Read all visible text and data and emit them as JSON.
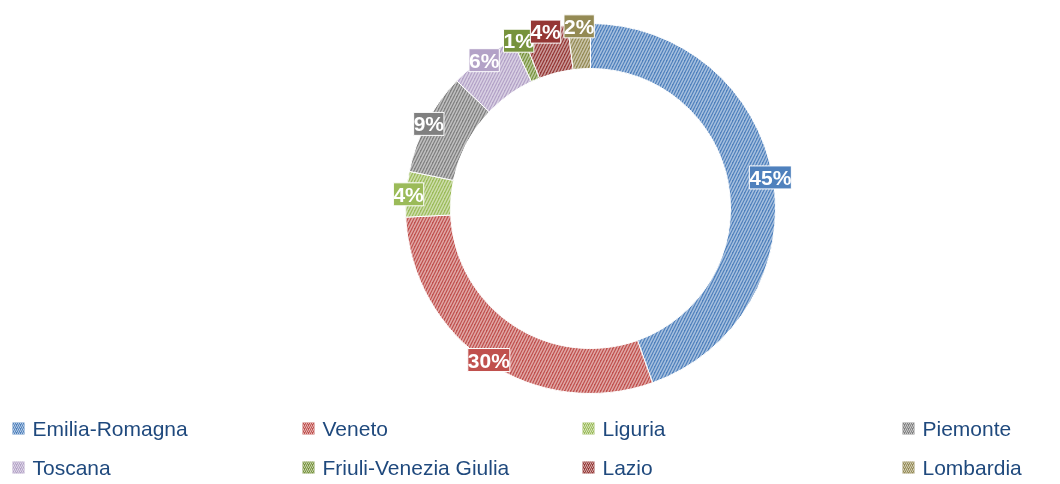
{
  "chart_data": {
    "type": "donut",
    "categories": [
      "Emilia-Romagna",
      "Veneto",
      "Liguria",
      "Piemonte",
      "Toscana",
      "Friuli-Venezia Giulia",
      "Lazio",
      "Lombardia"
    ],
    "values": [
      45,
      30,
      4,
      9,
      6,
      1,
      4,
      2
    ],
    "colors": [
      "#4f81bd",
      "#c0504d",
      "#9bbb59",
      "#808080",
      "#b3a2c7",
      "#77933c",
      "#953735",
      "#948a54"
    ],
    "value_labels": [
      "45%",
      "30%",
      "4%",
      "9%",
      "6%",
      "1%",
      "4%",
      "2%"
    ],
    "legend": "bottom"
  }
}
